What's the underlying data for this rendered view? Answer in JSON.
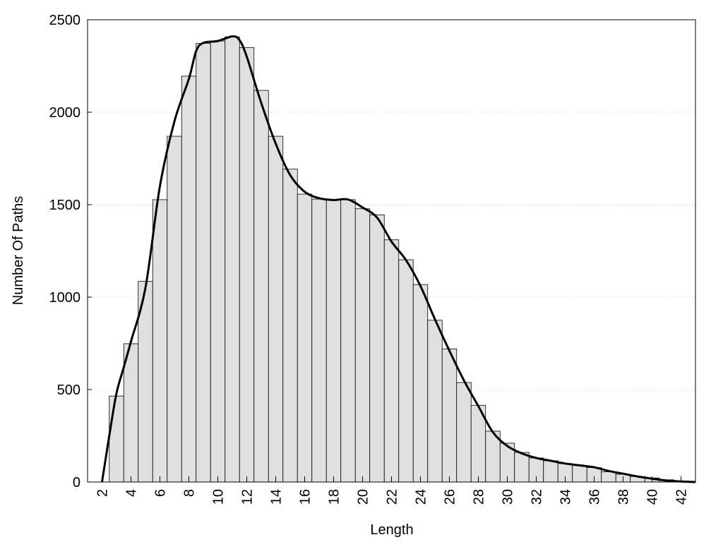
{
  "chart_data": {
    "type": "histogram",
    "xlabel": "Length",
    "ylabel": "Number Of Paths",
    "bins": [
      2.5,
      3.5,
      4.5,
      5.5,
      6.5,
      7.5,
      8.5,
      9.5,
      10.5,
      11.5,
      12.5,
      13.5,
      14.5,
      15.5,
      16.5,
      17.5,
      18.5,
      19.5,
      20.5,
      21.5,
      22.5,
      23.5,
      24.5,
      25.5,
      26.5,
      27.5,
      28.5,
      29.5,
      30.5,
      31.5,
      32.5,
      33.5,
      34.5,
      35.5,
      36.5,
      37.5,
      38.5,
      39.5,
      40.5,
      41.5,
      42.5
    ],
    "counts": [
      465,
      748,
      1085,
      1527,
      1870,
      2195,
      2372,
      2385,
      2408,
      2350,
      2118,
      1870,
      1692,
      1557,
      1530,
      1525,
      1527,
      1478,
      1445,
      1310,
      1202,
      1068,
      875,
      720,
      538,
      415,
      275,
      210,
      160,
      130,
      115,
      100,
      90,
      78,
      55,
      42,
      30,
      22,
      12,
      6
    ],
    "color": "#e0e0e0",
    "line": {
      "color": "#000000",
      "x": [
        2,
        2.5,
        3,
        3.5,
        4,
        5,
        6,
        7,
        8,
        8.5,
        9,
        10,
        11,
        11.5,
        12,
        13,
        14,
        15,
        16,
        17,
        18,
        19,
        20,
        21,
        22,
        23,
        24,
        25,
        26,
        27,
        28,
        29,
        30,
        31,
        32,
        33,
        34,
        35,
        36,
        37,
        38,
        39,
        40,
        41,
        42,
        43
      ],
      "values": [
        0,
        250,
        480,
        620,
        760,
        1050,
        1600,
        1950,
        2180,
        2330,
        2375,
        2385,
        2410,
        2390,
        2300,
        2050,
        1830,
        1660,
        1570,
        1535,
        1525,
        1528,
        1485,
        1430,
        1300,
        1200,
        1060,
        880,
        710,
        550,
        410,
        270,
        195,
        155,
        130,
        115,
        100,
        90,
        80,
        60,
        45,
        30,
        18,
        8,
        3,
        0
      ]
    },
    "xlim": [
      1,
      43
    ],
    "xticks": [
      2,
      4,
      6,
      8,
      10,
      12,
      14,
      16,
      18,
      20,
      22,
      24,
      26,
      28,
      30,
      32,
      34,
      36,
      38,
      40,
      42
    ],
    "ylim": [
      0,
      2500
    ],
    "yticks": [
      0,
      500,
      1000,
      1500,
      2000,
      2500
    ],
    "grid": true
  }
}
